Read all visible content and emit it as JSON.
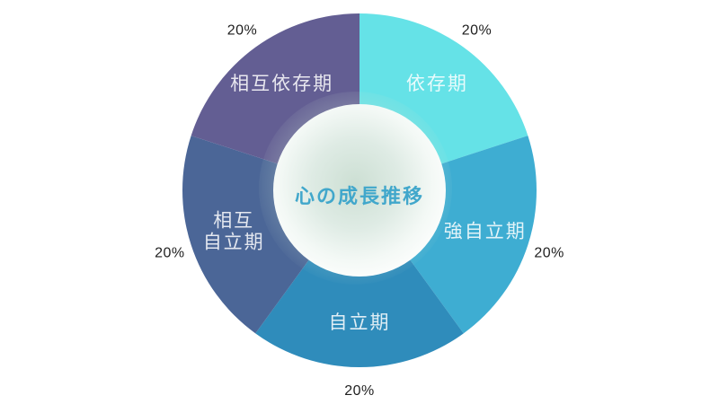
{
  "page": {
    "background_color": "#ffffff",
    "accent_color": "#41a7cb"
  },
  "chart_data": {
    "type": "pie",
    "donut": true,
    "title": "心の成長推移",
    "title_color": "#41a7cb",
    "categories": [
      "依存期",
      "強自立期",
      "自立期",
      "相互自立期",
      "相互依存期"
    ],
    "values": [
      20,
      20,
      20,
      20,
      20
    ],
    "unit": "%",
    "percent_labels": [
      "20%",
      "20%",
      "20%",
      "20%",
      "20%"
    ],
    "segment_label_lines": [
      [
        "依存期"
      ],
      [
        "強自立期"
      ],
      [
        "自立期"
      ],
      [
        "相互",
        "自立期"
      ],
      [
        "相互依存期"
      ]
    ],
    "colors": [
      "#65e2e7",
      "#3eadd2",
      "#2f8cbb",
      "#4b6697",
      "#635e93"
    ],
    "segment_label_color": "rgba(255,255,255,0.85)",
    "percent_label_color": "#1f1f1f",
    "start_angle": "top",
    "direction": "clockwise",
    "legend": "none",
    "grid": "off"
  }
}
